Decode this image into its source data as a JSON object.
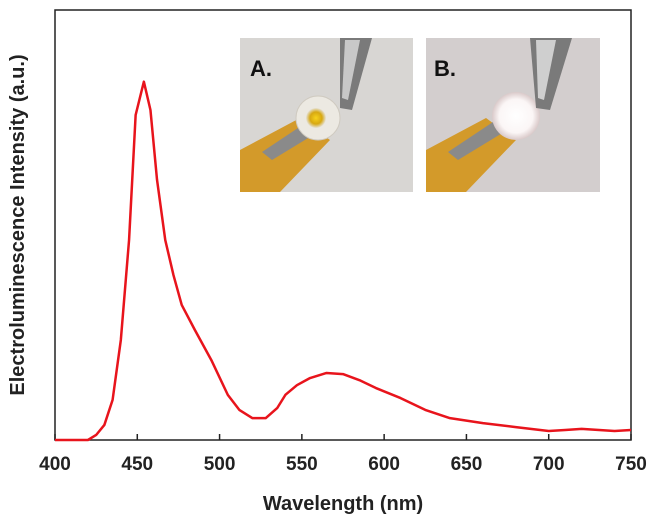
{
  "chart_data": {
    "type": "line",
    "x_label": "Wavelength (nm)",
    "y_label": "Electroluminescence Intensity (a.u.)",
    "annotations": [
      "A.",
      "B."
    ],
    "x": [
      400,
      420,
      425,
      430,
      435,
      440,
      445,
      449,
      454,
      458,
      462,
      467,
      472,
      477,
      485,
      495,
      505,
      512,
      520,
      528,
      535,
      540,
      547,
      555,
      565,
      575,
      585,
      595,
      610,
      625,
      640,
      660,
      680,
      700,
      710,
      720,
      740,
      750
    ],
    "series": [
      {
        "color": "#e8141c",
        "values": [
          0,
          0,
          0.014,
          0.042,
          0.112,
          0.279,
          0.558,
          0.907,
          1.0,
          0.921,
          0.726,
          0.558,
          0.46,
          0.377,
          0.307,
          0.223,
          0.126,
          0.084,
          0.061,
          0.061,
          0.089,
          0.126,
          0.153,
          0.173,
          0.187,
          0.184,
          0.167,
          0.145,
          0.117,
          0.084,
          0.061,
          0.047,
          0.036,
          0.025,
          0.028,
          0.031,
          0.025,
          0.028
        ]
      }
    ],
    "xlim": [
      400,
      750
    ],
    "xticks": [
      400,
      450,
      500,
      550,
      600,
      650,
      700,
      750
    ],
    "ylim": [
      0,
      1.2
    ]
  }
}
